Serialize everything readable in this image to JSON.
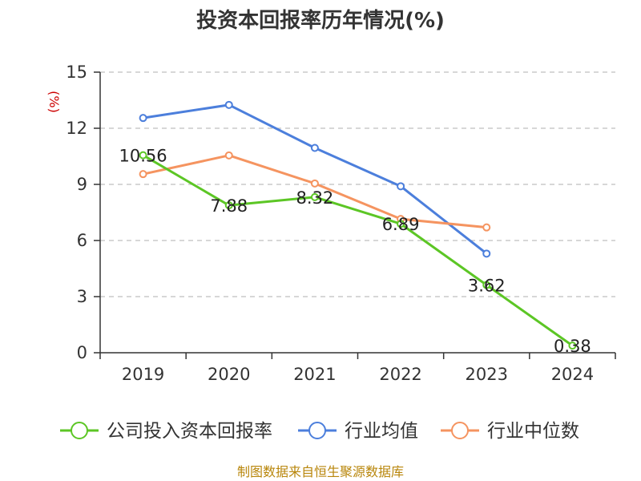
{
  "chart_data": {
    "type": "line",
    "title": "投资本回报率历年情况(%)",
    "ylabel": "(%)",
    "xlabel": "",
    "categories": [
      "2019",
      "2020",
      "2021",
      "2022",
      "2023",
      "2024"
    ],
    "ylim": [
      0,
      15
    ],
    "yticks": [
      0,
      3,
      6,
      9,
      12,
      15
    ],
    "grid": true,
    "legend_position": "bottom",
    "series": [
      {
        "name": "公司投入资本回报率",
        "color": "#5cc625",
        "values": [
          10.56,
          7.88,
          8.32,
          6.89,
          3.62,
          0.38
        ],
        "labels": [
          "10.56",
          "7.88",
          "8.32",
          "6.89",
          "3.62",
          "0.38"
        ]
      },
      {
        "name": "行业均值",
        "color": "#4c7fdc",
        "values": [
          12.55,
          13.25,
          10.95,
          8.9,
          5.3,
          null
        ]
      },
      {
        "name": "行业中位数",
        "color": "#f59460",
        "values": [
          9.55,
          10.55,
          9.05,
          7.15,
          6.7,
          null
        ]
      }
    ],
    "source": "制图数据来自恒生聚源数据库"
  }
}
